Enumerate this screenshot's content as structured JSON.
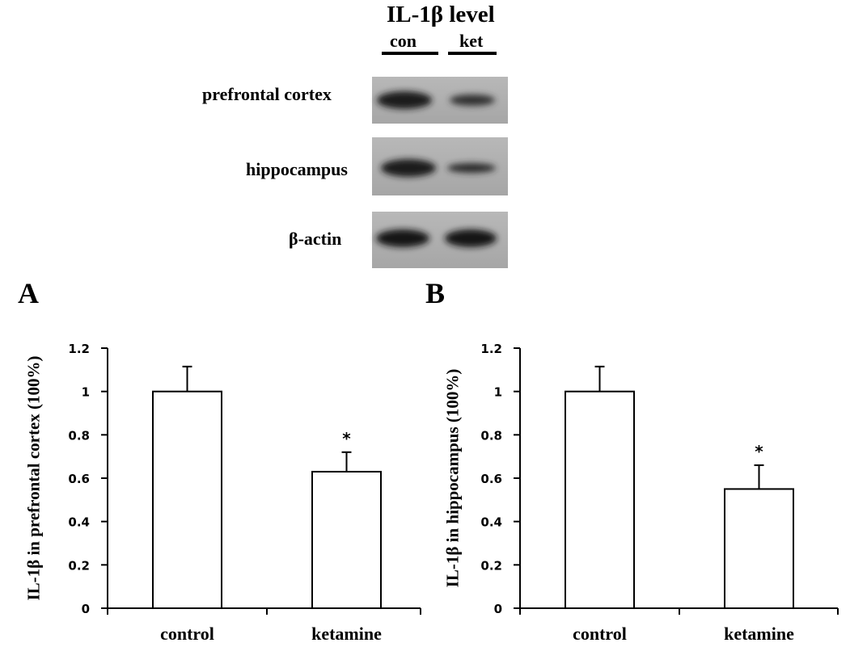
{
  "blot": {
    "title": "IL-1β level",
    "lanes": [
      "con",
      "ket"
    ],
    "rows": [
      "prefrontal cortex",
      "hippocampus",
      "β-actin"
    ]
  },
  "chart_data": [
    {
      "panel_label": "A",
      "type": "bar",
      "categories": [
        "control",
        "ketamine"
      ],
      "values": [
        1.0,
        0.63
      ],
      "errors": [
        0.115,
        0.09
      ],
      "significance": [
        "",
        "*"
      ],
      "ylabel": "IL-1β  in prefrontal cortex (100%)",
      "xlabel": "",
      "ylim": [
        0,
        1.2
      ],
      "yticks": [
        "0",
        "0.2",
        "0.4",
        "0.6",
        "0.8",
        "1",
        "1.2"
      ],
      "grid": false
    },
    {
      "panel_label": "B",
      "type": "bar",
      "categories": [
        "control",
        "ketamine"
      ],
      "values": [
        1.0,
        0.55
      ],
      "errors": [
        0.115,
        0.11
      ],
      "significance": [
        "",
        "*"
      ],
      "ylabel": "IL-1β  in hippocampus (100%)",
      "xlabel": "",
      "ylim": [
        0,
        1.2
      ],
      "yticks": [
        "0",
        "0.2",
        "0.4",
        "0.6",
        "0.8",
        "1",
        "1.2"
      ],
      "grid": false
    }
  ]
}
